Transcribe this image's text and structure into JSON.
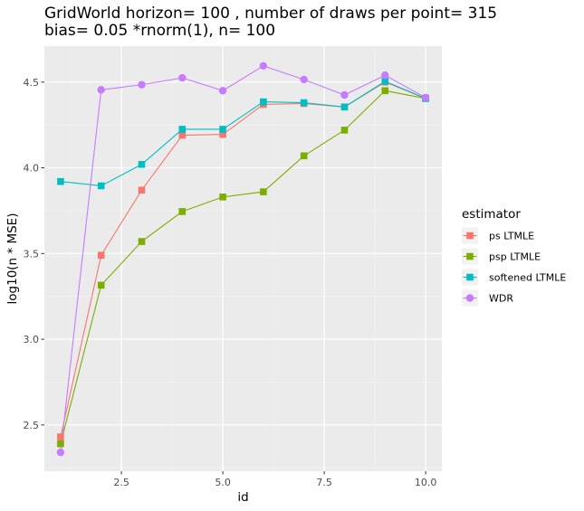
{
  "chart_data": {
    "type": "line",
    "title_line1": "GridWorld  horizon= 100 , number of draws per point= 315",
    "title_line2": "bias= 0.05 *rnorm(1), n= 100",
    "xlabel": "id",
    "ylabel": "log10(n * MSE)",
    "xlim": [
      0.6,
      10.4
    ],
    "ylim": [
      2.23,
      4.71
    ],
    "x_ticks": [
      2.5,
      5.0,
      7.5,
      10.0
    ],
    "x_tick_labels": [
      "2.5",
      "5.0",
      "7.5",
      "10.0"
    ],
    "y_ticks": [
      2.5,
      3.0,
      3.5,
      4.0,
      4.5
    ],
    "y_tick_labels": [
      "2.5",
      "3.0",
      "3.5",
      "4.0",
      "4.5"
    ],
    "grid": true,
    "legend_title": "estimator",
    "legend_position": "right",
    "x": [
      1,
      2,
      3,
      4,
      5,
      6,
      7,
      8,
      9,
      10
    ],
    "series": [
      {
        "name": "ps LTMLE",
        "color": "#F8766D",
        "marker": "square",
        "values": [
          2.43,
          3.49,
          3.87,
          4.19,
          4.195,
          4.37,
          4.375,
          4.355,
          4.5,
          4.405
        ]
      },
      {
        "name": "psp LTMLE",
        "color": "#7CAE00",
        "marker": "square",
        "values": [
          2.39,
          3.315,
          3.57,
          3.745,
          3.83,
          3.86,
          4.07,
          4.22,
          4.45,
          4.405
        ]
      },
      {
        "name": "softened LTMLE",
        "color": "#00BFC4",
        "marker": "square",
        "values": [
          3.92,
          3.895,
          4.02,
          4.225,
          4.225,
          4.385,
          4.38,
          4.355,
          4.505,
          4.405
        ]
      },
      {
        "name": "WDR",
        "color": "#C77CFF",
        "marker": "circle",
        "values": [
          2.34,
          4.455,
          4.485,
          4.525,
          4.45,
          4.595,
          4.515,
          4.425,
          4.54,
          4.41
        ]
      }
    ]
  }
}
